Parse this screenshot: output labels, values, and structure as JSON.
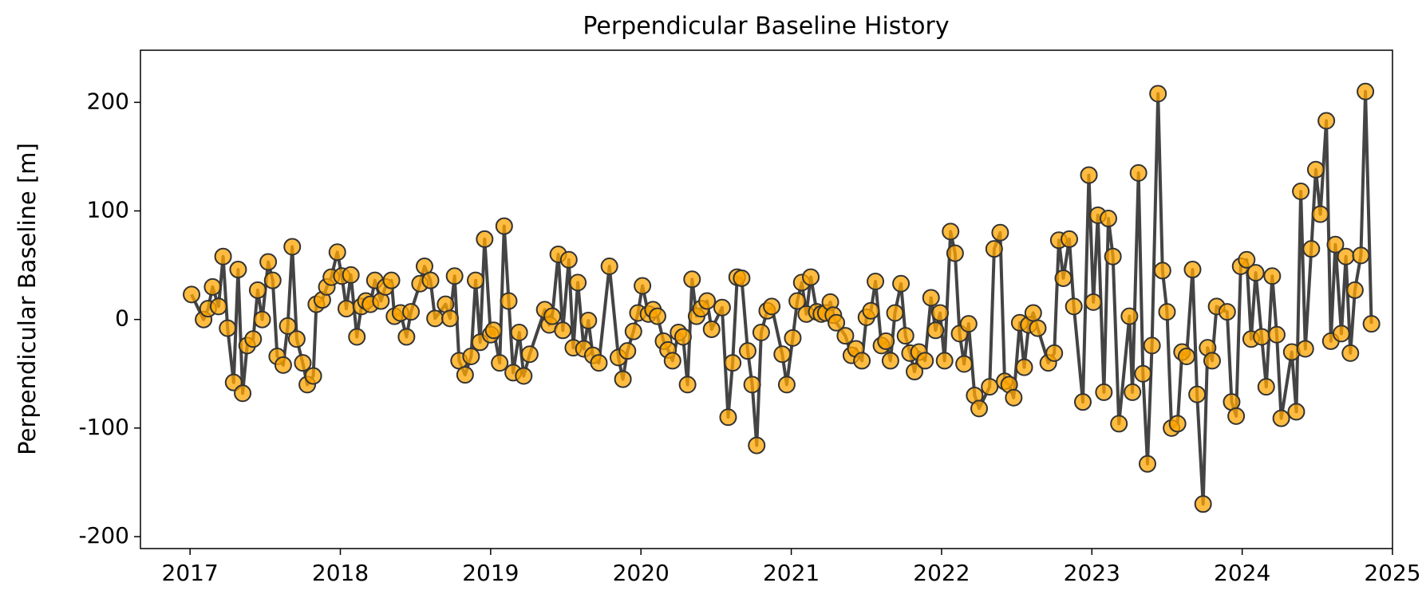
{
  "chart_data": {
    "type": "line",
    "title": "Perpendicular Baseline History",
    "ylabel": "Perpendicular Baseline [m]",
    "x": [
      2017.01,
      2017.09,
      2017.12,
      2017.15,
      2017.19,
      2017.22,
      2017.25,
      2017.29,
      2017.32,
      2017.35,
      2017.38,
      2017.42,
      2017.45,
      2017.48,
      2017.52,
      2017.55,
      2017.58,
      2017.62,
      2017.65,
      2017.68,
      2017.71,
      2017.75,
      2017.78,
      2017.82,
      2017.84,
      2017.88,
      2017.91,
      2017.94,
      2017.98,
      2018.01,
      2018.04,
      2018.07,
      2018.11,
      2018.14,
      2018.17,
      2018.2,
      2018.23,
      2018.27,
      2018.3,
      2018.34,
      2018.36,
      2018.4,
      2018.44,
      2018.47,
      2018.53,
      2018.56,
      2018.6,
      2018.63,
      2018.7,
      2018.73,
      2018.76,
      2018.79,
      2018.83,
      2018.87,
      2018.9,
      2018.93,
      2018.96,
      2019.0,
      2019.02,
      2019.06,
      2019.09,
      2019.12,
      2019.15,
      2019.19,
      2019.22,
      2019.26,
      2019.36,
      2019.39,
      2019.41,
      2019.45,
      2019.48,
      2019.52,
      2019.55,
      2019.58,
      2019.62,
      2019.65,
      2019.68,
      2019.72,
      2019.79,
      2019.85,
      2019.88,
      2019.91,
      2019.95,
      2019.98,
      2020.01,
      2020.05,
      2020.08,
      2020.11,
      2020.15,
      2020.18,
      2020.21,
      2020.25,
      2020.28,
      2020.31,
      2020.34,
      2020.37,
      2020.4,
      2020.44,
      2020.47,
      2020.54,
      2020.58,
      2020.61,
      2020.64,
      2020.67,
      2020.71,
      2020.74,
      2020.77,
      2020.8,
      2020.84,
      2020.87,
      2020.94,
      2020.97,
      2021.01,
      2021.04,
      2021.07,
      2021.1,
      2021.13,
      2021.17,
      2021.2,
      2021.23,
      2021.26,
      2021.28,
      2021.3,
      2021.36,
      2021.4,
      2021.43,
      2021.47,
      2021.5,
      2021.53,
      2021.56,
      2021.6,
      2021.63,
      2021.66,
      2021.69,
      2021.73,
      2021.76,
      2021.79,
      2021.82,
      2021.85,
      2021.89,
      2021.93,
      2021.96,
      2021.99,
      2022.02,
      2022.06,
      2022.09,
      2022.12,
      2022.15,
      2022.18,
      2022.22,
      2022.25,
      2022.32,
      2022.35,
      2022.39,
      2022.42,
      2022.45,
      2022.48,
      2022.52,
      2022.55,
      2022.58,
      2022.61,
      2022.64,
      2022.71,
      2022.75,
      2022.78,
      2022.81,
      2022.85,
      2022.88,
      2022.94,
      2022.98,
      2023.01,
      2023.04,
      2023.08,
      2023.11,
      2023.14,
      2023.18,
      2023.25,
      2023.27,
      2023.31,
      2023.34,
      2023.37,
      2023.4,
      2023.44,
      2023.47,
      2023.5,
      2023.53,
      2023.57,
      2023.6,
      2023.63,
      2023.67,
      2023.7,
      2023.74,
      2023.77,
      2023.8,
      2023.83,
      2023.9,
      2023.93,
      2023.96,
      2023.99,
      2024.03,
      2024.06,
      2024.09,
      2024.13,
      2024.16,
      2024.2,
      2024.23,
      2024.26,
      2024.33,
      2024.36,
      2024.39,
      2024.42,
      2024.46,
      2024.49,
      2024.52,
      2024.56,
      2024.59,
      2024.62,
      2024.66,
      2024.69,
      2024.72,
      2024.75,
      2024.79,
      2024.82,
      2024.86
    ],
    "series": [
      {
        "color": "#444444",
        "marker_color": "#ffa500",
        "values": [
          23,
          0,
          10,
          30,
          12,
          58,
          -8,
          -58,
          46,
          -68,
          -24,
          -18,
          27,
          0,
          53,
          36,
          -34,
          -42,
          -6,
          67,
          -18,
          -40,
          -60,
          -52,
          14,
          18,
          30,
          39,
          62,
          40,
          10,
          41,
          -16,
          12,
          17,
          14,
          36,
          17,
          30,
          36,
          3,
          6,
          -16,
          7,
          33,
          49,
          36,
          1,
          14,
          1,
          40,
          -38,
          -51,
          -34,
          36,
          -21,
          74,
          -14,
          -10,
          -40,
          86,
          17,
          -49,
          -12,
          -52,
          -32,
          9,
          -5,
          3,
          60,
          -10,
          55,
          -26,
          34,
          -27,
          -1,
          -33,
          -40,
          49,
          -35,
          -55,
          -29,
          -11,
          6,
          31,
          5,
          9,
          3,
          -20,
          -28,
          -38,
          -12,
          -16,
          -60,
          37,
          3,
          10,
          17,
          -9,
          11,
          -90,
          -40,
          39,
          38,
          -29,
          -60,
          -116,
          -12,
          8,
          12,
          -32,
          -60,
          -17,
          17,
          34,
          5,
          39,
          7,
          5,
          6,
          16,
          4,
          -3,
          -15,
          -33,
          -27,
          -38,
          2,
          8,
          35,
          -24,
          -20,
          -38,
          6,
          33,
          -15,
          -31,
          -48,
          -30,
          -38,
          20,
          -10,
          6,
          -38,
          81,
          61,
          -13,
          -41,
          -4,
          -70,
          -82,
          -62,
          65,
          80,
          -57,
          -60,
          -72,
          -3,
          -44,
          -5,
          6,
          -8,
          -40,
          -31,
          73,
          38,
          74,
          12,
          -76,
          133,
          16,
          96,
          -67,
          93,
          58,
          -96,
          3,
          -67,
          135,
          -50,
          -133,
          -24,
          208,
          45,
          7,
          -100,
          -96,
          -30,
          -34,
          46,
          -69,
          -170,
          -26,
          -38,
          12,
          7,
          -76,
          -89,
          49,
          55,
          -18,
          43,
          -16,
          -62,
          40,
          -14,
          -91,
          -30,
          -85,
          118,
          -27,
          65,
          138,
          97,
          183,
          -20,
          69,
          -13,
          58,
          -31,
          27,
          59,
          210,
          -4
        ]
      }
    ],
    "xlim": [
      2016.67,
      2025.0
    ],
    "xticks": [
      2017,
      2018,
      2019,
      2020,
      2021,
      2022,
      2023,
      2024,
      2025
    ],
    "ylim": [
      -211,
      248
    ],
    "yticks": [
      -200,
      -100,
      0,
      100,
      200
    ]
  }
}
